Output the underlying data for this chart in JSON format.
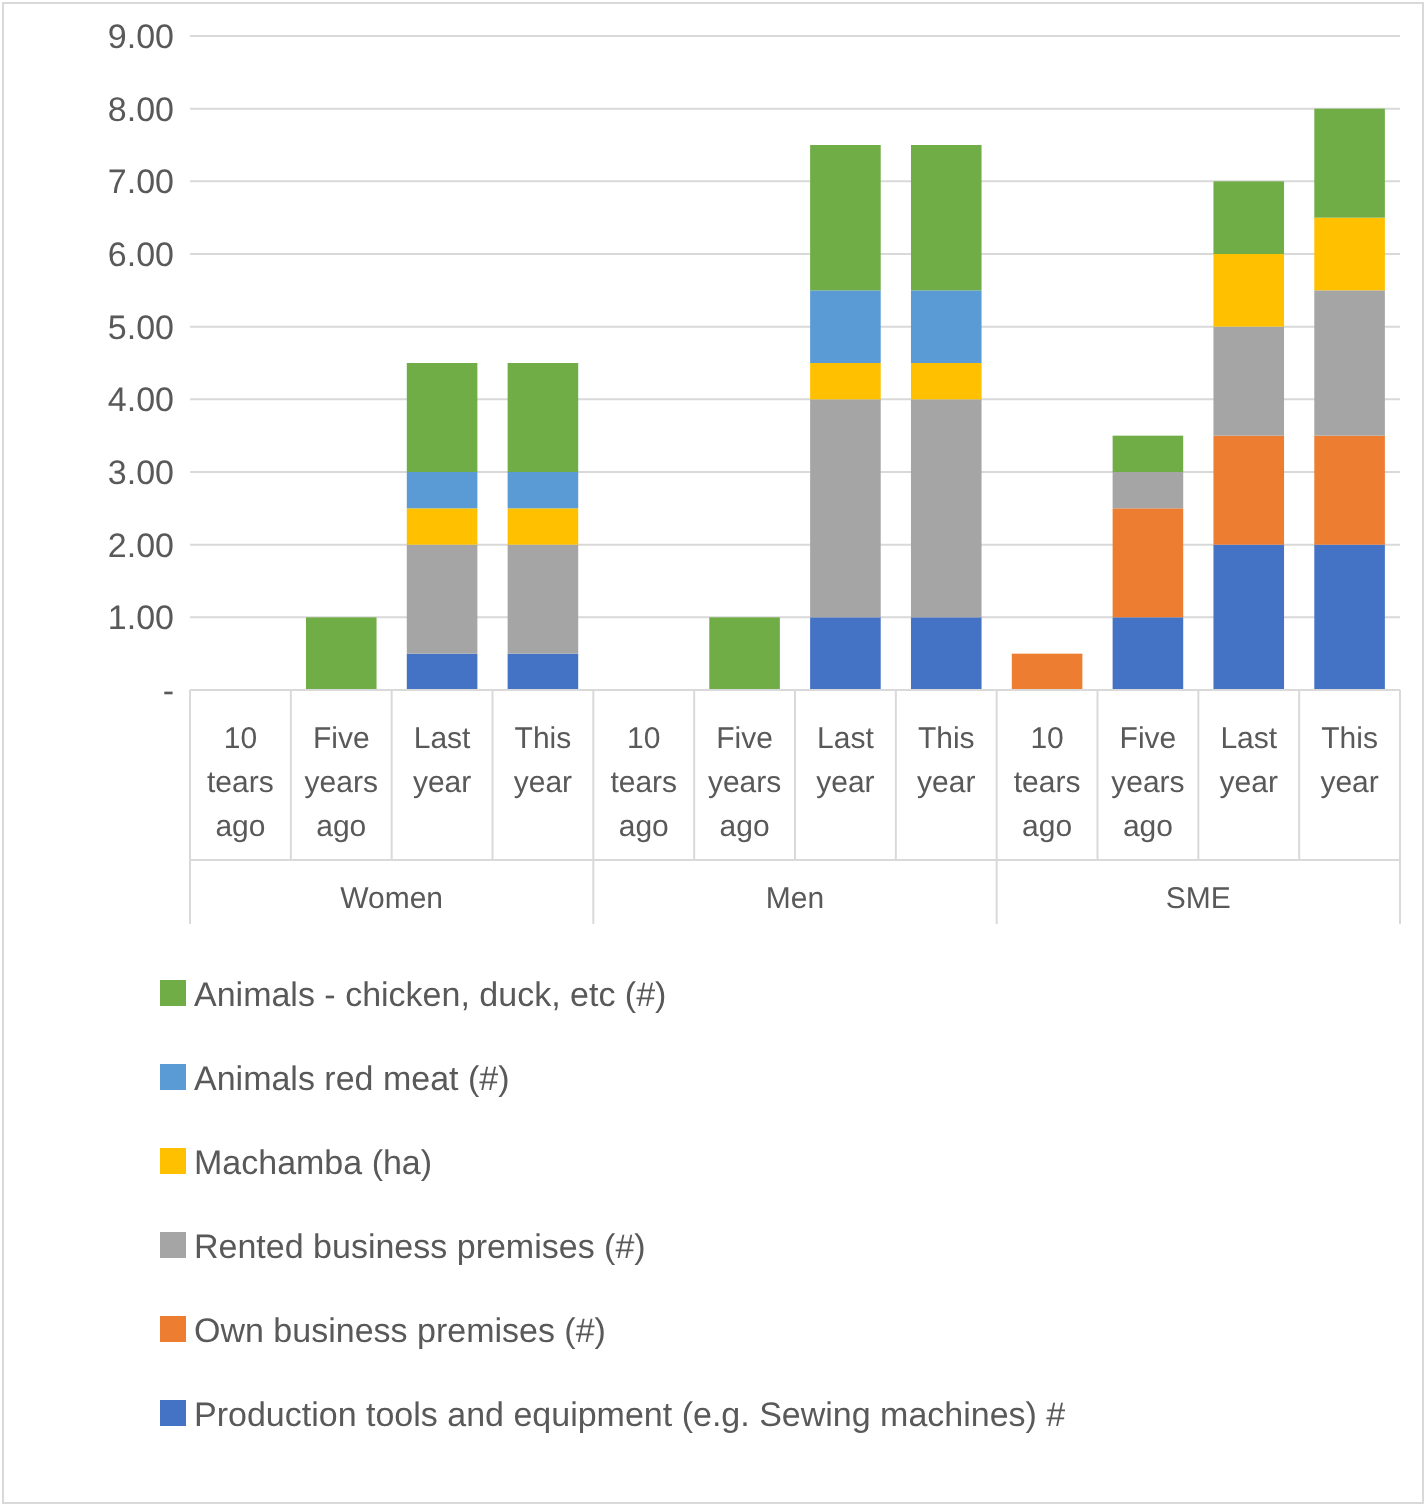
{
  "chart_data": {
    "type": "bar",
    "stacked": true,
    "categories": [
      "10 tears ago",
      "Five years ago",
      "Last year",
      "This year",
      "10 tears ago",
      "Five years ago",
      "Last year",
      "This year",
      "10 tears ago",
      "Five years ago",
      "Last year",
      "This year"
    ],
    "annotations": [
      "Women",
      "Men",
      "SME"
    ],
    "series": [
      {
        "name": "Production tools and equipment (e.g. Sewing machines)  #",
        "color": "#4472c4",
        "values": [
          0,
          0,
          0.5,
          0.5,
          0,
          0,
          1,
          1,
          0,
          1,
          2,
          2
        ]
      },
      {
        "name": "Own business premises (#)",
        "color": "#ed7d31",
        "values": [
          0,
          0,
          0,
          0,
          0,
          0,
          0,
          0,
          0.5,
          1.5,
          1.5,
          1.5
        ]
      },
      {
        "name": "Rented business premises (#)",
        "color": "#a5a5a5",
        "values": [
          0,
          0,
          1.5,
          1.5,
          0,
          0,
          3,
          3,
          0,
          0.5,
          1.5,
          2
        ]
      },
      {
        "name": "Machamba (ha)",
        "color": "#ffc000",
        "values": [
          0,
          0,
          0.5,
          0.5,
          0,
          0,
          0.5,
          0.5,
          0,
          0,
          1,
          1
        ]
      },
      {
        "name": "Animals red meat (#)",
        "color": "#5b9bd5",
        "values": [
          0,
          0,
          0.5,
          0.5,
          0,
          0,
          1,
          1,
          0,
          0,
          0,
          0
        ]
      },
      {
        "name": "Animals -  chicken, duck, etc (#)",
        "color": "#70ad47",
        "values": [
          0,
          1,
          1.5,
          1.5,
          0,
          1,
          2,
          2,
          0,
          0.5,
          1,
          1.5
        ]
      }
    ],
    "ylim": [
      0,
      9
    ],
    "yticks": [
      {
        "value": 0,
        "label": "-"
      },
      {
        "value": 1,
        "label": "1.00"
      },
      {
        "value": 2,
        "label": "2.00"
      },
      {
        "value": 3,
        "label": "3.00"
      },
      {
        "value": 4,
        "label": "4.00"
      },
      {
        "value": 5,
        "label": "5.00"
      },
      {
        "value": 6,
        "label": "6.00"
      },
      {
        "value": 7,
        "label": "7.00"
      },
      {
        "value": 8,
        "label": "8.00"
      },
      {
        "value": 9,
        "label": "9.00"
      }
    ],
    "grid": "y",
    "legend": "bottom"
  }
}
